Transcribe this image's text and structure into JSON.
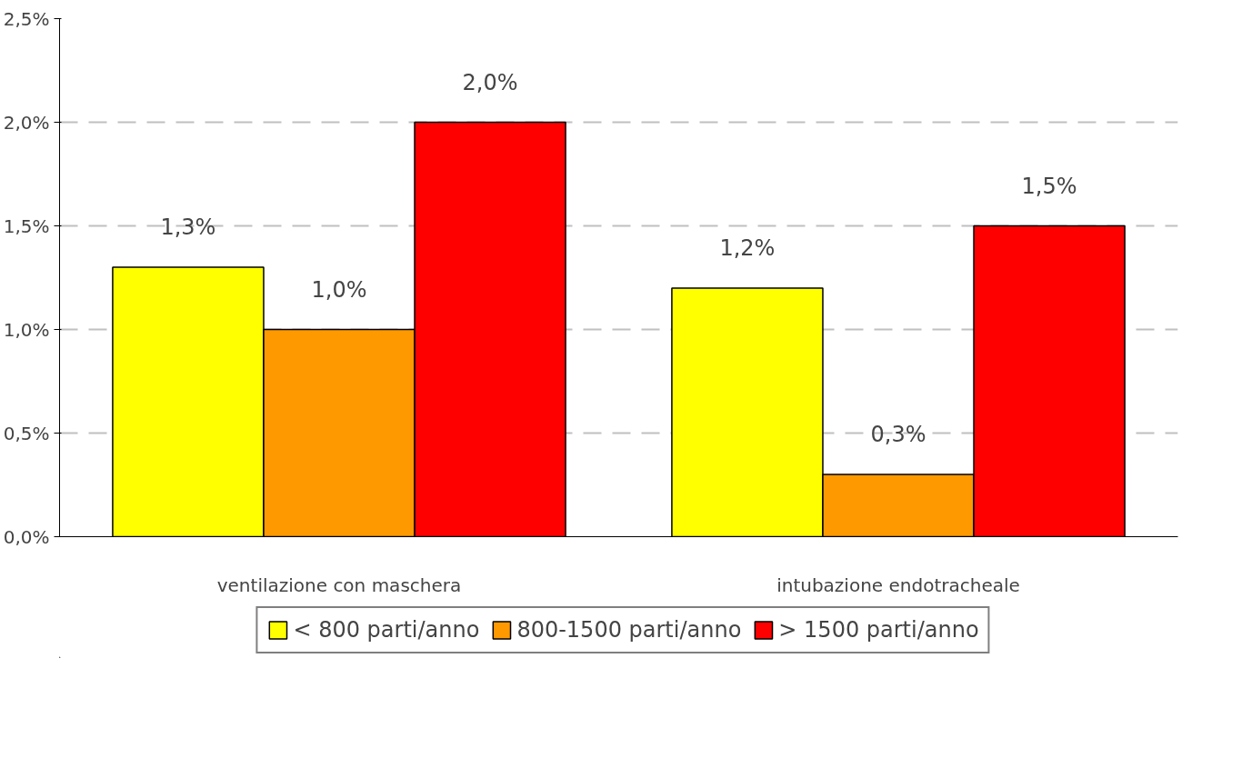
{
  "chart_data": {
    "type": "bar",
    "categories": [
      "ventilazione con maschera",
      "intubazione endotracheale"
    ],
    "series": [
      {
        "name": "< 800 parti/anno",
        "color": "#ffff00",
        "values": [
          1.3,
          1.2
        ],
        "value_labels": [
          "1,3%",
          "1,2%"
        ]
      },
      {
        "name": "800-1500 parti/anno",
        "color": "#ff9900",
        "values": [
          1.0,
          0.3
        ],
        "value_labels": [
          "1,0%",
          "0,3%"
        ]
      },
      {
        "name": "> 1500 parti/anno",
        "color": "#ff0000",
        "values": [
          2.0,
          1.5
        ],
        "value_labels": [
          "2,0%",
          "1,5%"
        ]
      }
    ],
    "ylim": [
      0,
      2.5
    ],
    "yticks": [
      {
        "value": 0,
        "label": "0,0%"
      },
      {
        "value": 0.5,
        "label": "0,5%"
      },
      {
        "value": 1,
        "label": "1,0%"
      },
      {
        "value": 1.5,
        "label": "1,5%"
      },
      {
        "value": 2,
        "label": "2,0%"
      },
      {
        "value": 2.5,
        "label": "2,5%"
      }
    ],
    "grid": "y",
    "legend": "bottom"
  }
}
